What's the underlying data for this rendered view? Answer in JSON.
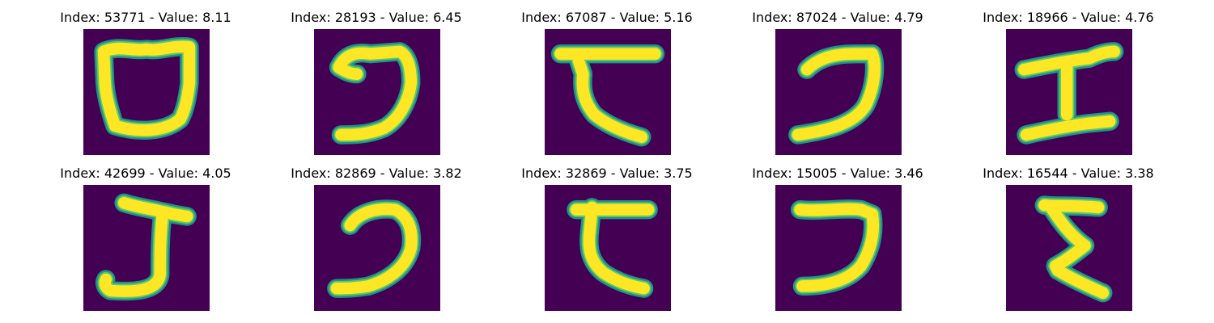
{
  "figure": {
    "background_color": "#440154",
    "stroke_colors": {
      "outer_halo": "#21918c",
      "mid_halo": "#5ec962",
      "core": "#fde725"
    }
  },
  "panels": [
    {
      "title": "Index: 53771 - Value: 8.11",
      "index": 53771,
      "value": 8.11,
      "glyph": "cup-shape"
    },
    {
      "title": "Index: 28193 - Value: 6.45",
      "index": 28193,
      "value": 6.45,
      "glyph": "hook-shape"
    },
    {
      "title": "Index: 67087 - Value: 5.16",
      "index": 67087,
      "value": 5.16,
      "glyph": "bar-hook-shape"
    },
    {
      "title": "Index: 87024 - Value: 4.79",
      "index": 87024,
      "value": 4.79,
      "glyph": "thin-hook-shape"
    },
    {
      "title": "Index: 18966 - Value: 4.76",
      "index": 18966,
      "value": 4.76,
      "glyph": "i-beam-shape"
    },
    {
      "title": "Index: 42699 - Value: 4.05",
      "index": 42699,
      "value": 4.05,
      "glyph": "j-shape"
    },
    {
      "title": "Index: 82869 - Value: 3.82",
      "index": 82869,
      "value": 3.82,
      "glyph": "c-hook-shape"
    },
    {
      "title": "Index: 32869 - Value: 3.75",
      "index": 32869,
      "value": 3.75,
      "glyph": "bar-hook-shape-small"
    },
    {
      "title": "Index: 15005 - Value: 3.46",
      "index": 15005,
      "value": 3.46,
      "glyph": "hook-shape-tall"
    },
    {
      "title": "Index: 16544 - Value: 3.38",
      "index": 16544,
      "value": 3.38,
      "glyph": "zigzag-shape"
    }
  ]
}
